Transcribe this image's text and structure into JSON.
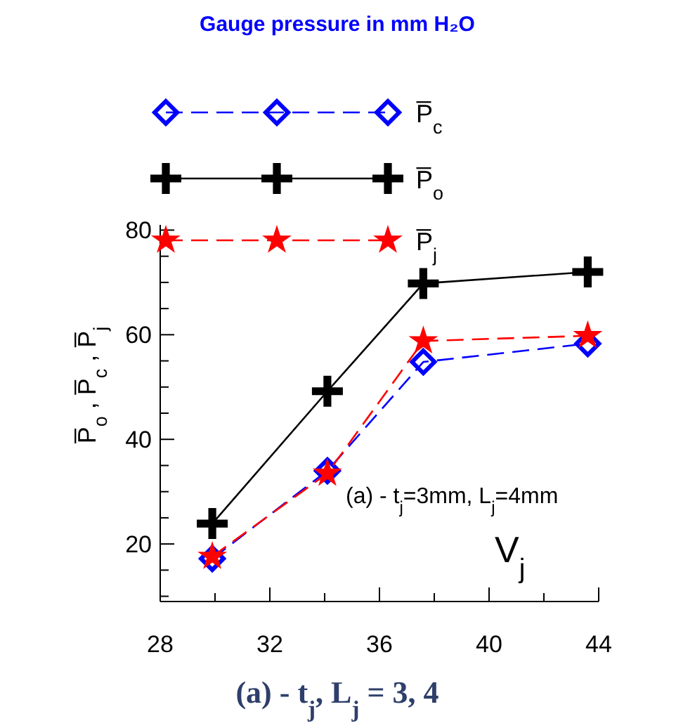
{
  "chart_data": {
    "type": "line",
    "title": "Gauge pressure in mm H₂O",
    "xlabel": "V$_{j}$",
    "ylabel": "P̅$_{o}$ , P̅$_{c}$ , P̅$_{j}$",
    "x": [
      29.9,
      34.1,
      37.6,
      43.6
    ],
    "series": [
      {
        "name": "P̅$_{c}$",
        "color": "#0000ff",
        "values": [
          17.2,
          34.0,
          54.8,
          58.3
        ],
        "marker": "diamond",
        "line_style": "dashed"
      },
      {
        "name": "P̅$_{o}$",
        "color": "#000000",
        "values": [
          23.9,
          49.2,
          69.8,
          72.0
        ],
        "marker": "cross",
        "line_style": "solid"
      },
      {
        "name": "P̅$_{j}$",
        "color": "#ff0000",
        "values": [
          17.6,
          33.5,
          58.8,
          59.8
        ],
        "marker": "star",
        "line_style": "dashed"
      }
    ],
    "xlim": [
      28,
      44
    ],
    "ylim": [
      9,
      81
    ],
    "xticks": [
      28,
      {
        "value": 30,
        "label": null
      },
      32,
      {
        "value": 34,
        "label": null
      },
      36,
      {
        "value": 38,
        "label": null
      },
      40,
      {
        "value": 42,
        "label": null
      },
      44
    ],
    "yticks": [
      {
        "value": 10,
        "label": null
      },
      {
        "value": 15,
        "label": null
      },
      20,
      {
        "value": 25,
        "label": null
      },
      {
        "value": 30,
        "label": null
      },
      {
        "value": 35,
        "label": null
      },
      40,
      {
        "value": 45,
        "label": null
      },
      {
        "value": 50,
        "label": null
      },
      {
        "value": 55,
        "label": null
      },
      60,
      {
        "value": 65,
        "label": null
      },
      {
        "value": 70,
        "label": null
      },
      {
        "value": 75,
        "label": null
      },
      80
    ],
    "legend": "top",
    "grid": false,
    "annotations": [
      "(a) - t$_{j}$=3mm, L$_{j}$=4mm",
      "(a)  - t$_{j}$, L$_{j}$ = 3, 4"
    ]
  }
}
